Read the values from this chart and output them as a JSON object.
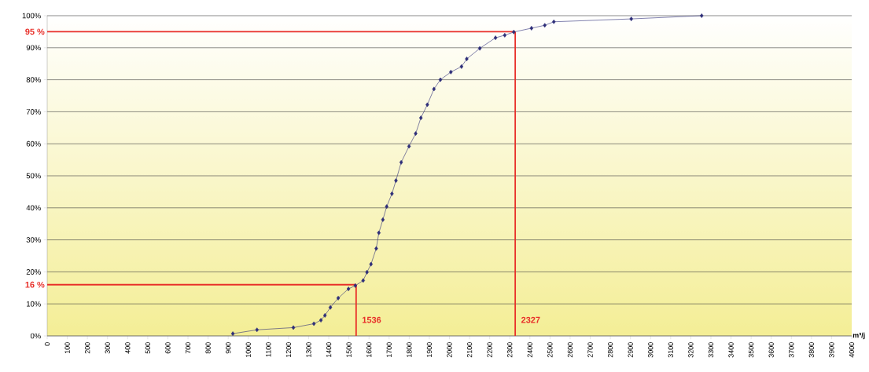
{
  "chart_data": {
    "type": "line",
    "xlabel": "m³/j",
    "x": [
      923,
      1043,
      1224,
      1326,
      1361,
      1381,
      1408,
      1447,
      1498,
      1532,
      1571,
      1590,
      1610,
      1636,
      1649,
      1669,
      1688,
      1714,
      1734,
      1760,
      1799,
      1832,
      1858,
      1890,
      1923,
      1955,
      2007,
      2060,
      2086,
      2151,
      2229,
      2275,
      2320,
      2408,
      2474,
      2519,
      2904,
      3254
    ],
    "series": [
      {
        "color": "#2e2e78",
        "values": [
          0.7,
          1.9,
          2.6,
          3.8,
          4.9,
          6.4,
          8.9,
          11.8,
          14.7,
          15.7,
          17.3,
          19.9,
          22.4,
          27.3,
          32.2,
          36.3,
          40.4,
          44.4,
          48.5,
          54.2,
          59.2,
          63.2,
          68.1,
          72.2,
          77.1,
          80.0,
          82.4,
          84.1,
          86.5,
          89.8,
          93.1,
          93.9,
          94.9,
          96.1,
          97.0,
          98.1,
          99.0,
          100
        ]
      }
    ],
    "marker": "diamond",
    "line_style": "solid",
    "grid": "y",
    "xlim": [
      0,
      4000
    ],
    "ylim": [
      0,
      100
    ],
    "xticks": [
      0,
      100,
      200,
      300,
      400,
      500,
      600,
      700,
      800,
      900,
      1000,
      1100,
      1200,
      1300,
      1400,
      1500,
      1600,
      1700,
      1800,
      1900,
      2000,
      2100,
      2200,
      2300,
      2400,
      2500,
      2600,
      2700,
      2800,
      2900,
      3000,
      3100,
      3200,
      3300,
      3400,
      3500,
      3600,
      3700,
      3800,
      3900,
      4000
    ],
    "yticks": [
      {
        "value": 0,
        "label": "0%"
      },
      {
        "value": 10,
        "label": "10%"
      },
      {
        "value": 20,
        "label": "20%"
      },
      {
        "value": 30,
        "label": "30%"
      },
      {
        "value": 40,
        "label": "40%"
      },
      {
        "value": 50,
        "label": "50%"
      },
      {
        "value": 60,
        "label": "60%"
      },
      {
        "value": 70,
        "label": "70%"
      },
      {
        "value": 80,
        "label": "80%"
      },
      {
        "value": 90,
        "label": "90%"
      },
      {
        "value": 100,
        "label": "100%"
      }
    ],
    "ref_lines": [
      {
        "axis": "y",
        "value": 95,
        "label": "95 %",
        "color": "#e8302a"
      },
      {
        "axis": "x",
        "value": 2327,
        "label": "2327",
        "color": "#e8302a"
      },
      {
        "axis": "y",
        "value": 16,
        "label": "16 %",
        "color": "#e8302a"
      },
      {
        "axis": "x",
        "value": 1536,
        "label": "1536",
        "color": "#e8302a"
      }
    ]
  }
}
